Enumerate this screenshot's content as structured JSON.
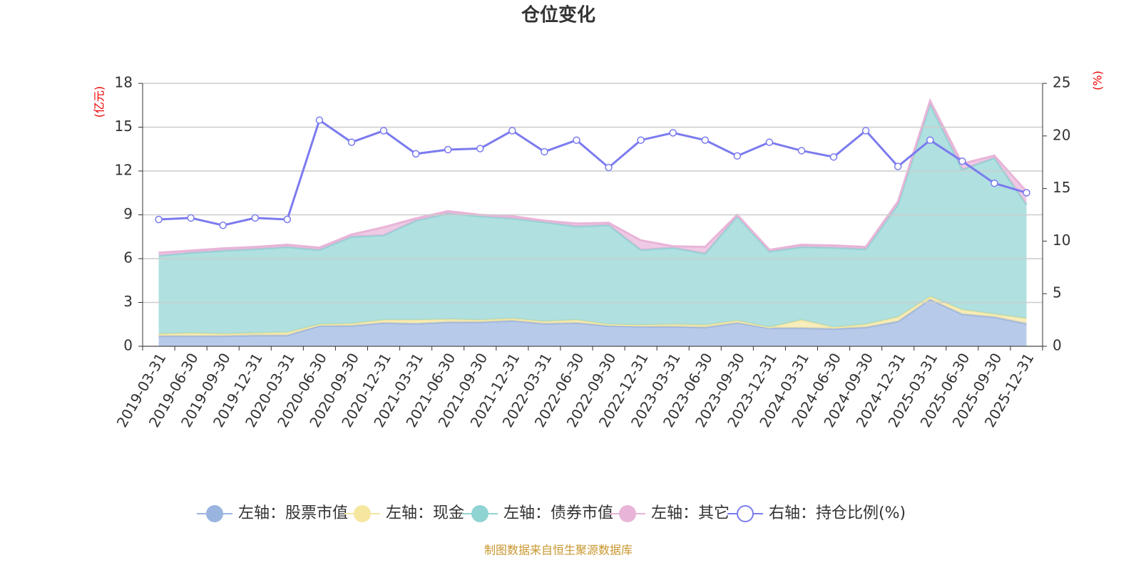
{
  "chart_data": {
    "type": "stacked_area",
    "title": "仓位变化",
    "ylabel": "(亿元)",
    "y2label": "(%)",
    "source": "制图数据来自恒生聚源数据库",
    "categories": [
      "2019-03-31",
      "2019-06-30",
      "2019-09-30",
      "2019-12-31",
      "2020-03-31",
      "2020-06-30",
      "2020-09-30",
      "2020-12-31",
      "2021-03-31",
      "2021-06-30",
      "2021-09-30",
      "2021-12-31",
      "2022-03-31",
      "2022-06-30",
      "2022-09-30",
      "2022-12-31",
      "2023-03-31",
      "2023-06-30",
      "2023-09-30",
      "2023-12-31",
      "2024-03-31",
      "2024-06-30",
      "2024-09-30",
      "2024-12-31",
      "2025-03-31",
      "2025-06-30",
      "2025-09-30",
      "2025-12-31"
    ],
    "series": [
      {
        "name": "左轴：股票市值",
        "type": "area",
        "axis": "y",
        "color": "#9ab4e0",
        "values": [
          0.7,
          0.7,
          0.7,
          0.75,
          0.75,
          1.4,
          1.4,
          1.6,
          1.55,
          1.65,
          1.65,
          1.75,
          1.55,
          1.6,
          1.4,
          1.35,
          1.35,
          1.3,
          1.6,
          1.25,
          1.25,
          1.2,
          1.3,
          1.7,
          3.2,
          2.2,
          2.0,
          1.55
        ]
      },
      {
        "name": "左轴：现金",
        "type": "area",
        "axis": "y",
        "color": "#f5e6a0",
        "values": [
          0.15,
          0.2,
          0.15,
          0.15,
          0.2,
          0.1,
          0.15,
          0.2,
          0.25,
          0.2,
          0.15,
          0.15,
          0.15,
          0.2,
          0.1,
          0.1,
          0.15,
          0.15,
          0.15,
          0.05,
          0.55,
          0.1,
          0.2,
          0.3,
          0.2,
          0.3,
          0.2,
          0.35
        ]
      },
      {
        "name": "左轴：债券市值",
        "type": "area",
        "axis": "y",
        "color": "#8fd3d3",
        "values": [
          5.35,
          5.5,
          5.7,
          5.75,
          5.85,
          5.1,
          5.95,
          5.8,
          6.8,
          7.25,
          7.1,
          6.85,
          6.8,
          6.4,
          6.8,
          5.15,
          5.25,
          4.9,
          7.15,
          5.2,
          5.0,
          5.45,
          5.15,
          7.7,
          13.2,
          9.6,
          10.7,
          7.8
        ]
      },
      {
        "name": "左轴：其它",
        "type": "area",
        "axis": "y",
        "color": "#e8b4d8",
        "values": [
          0.2,
          0.15,
          0.15,
          0.15,
          0.15,
          0.15,
          0.15,
          0.55,
          0.15,
          0.15,
          0.1,
          0.15,
          0.1,
          0.2,
          0.15,
          0.65,
          0.1,
          0.45,
          0.1,
          0.1,
          0.15,
          0.15,
          0.15,
          0.2,
          0.2,
          0.4,
          0.15,
          0.9
        ]
      },
      {
        "name": "右轴：持仓比例(%)",
        "type": "line",
        "axis": "y2",
        "color": "#7b7bef",
        "values": [
          12.06,
          12.2,
          11.5,
          12.2,
          12.06,
          21.5,
          19.4,
          20.5,
          18.3,
          18.7,
          18.8,
          20.5,
          18.5,
          19.6,
          17.0,
          19.6,
          20.3,
          19.6,
          18.1,
          19.4,
          18.6,
          18.0,
          20.5,
          17.1,
          19.6,
          17.6,
          15.5,
          14.6
        ]
      }
    ],
    "ylim": [
      0,
      18
    ],
    "yticks": [
      0,
      3,
      6,
      9,
      12,
      15,
      18
    ],
    "y2lim": [
      0,
      25
    ],
    "y2ticks": [
      0,
      5,
      10,
      15,
      20,
      25
    ],
    "grid": true,
    "legend": "bottom"
  }
}
